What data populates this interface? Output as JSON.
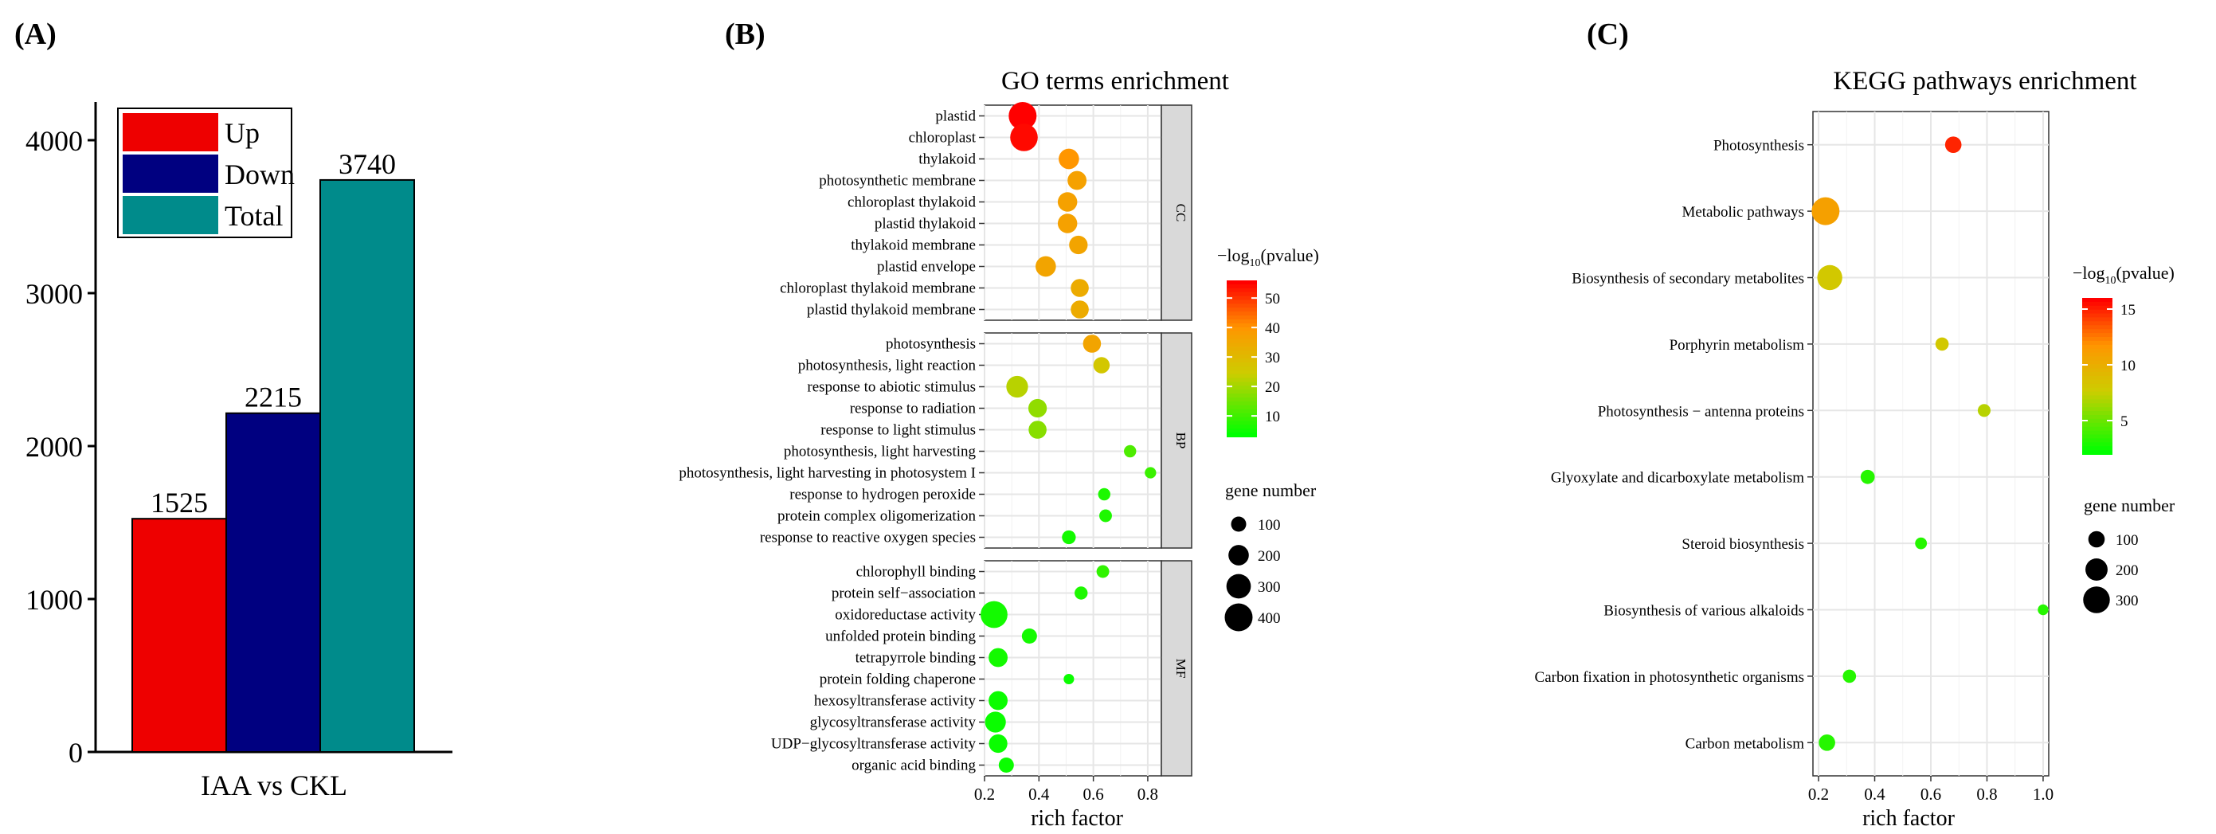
{
  "panel_labels": {
    "a": "(A)",
    "b": "(B)",
    "c": "(C)"
  },
  "legend_scale": {
    "cap_gene_a": "gene number",
    "cap_gene_b": "gene number"
  },
  "chart_data": [
    {
      "type": "bar",
      "panel": "A",
      "title": "",
      "xlabel": "IAA vs CKL",
      "ylabel": "",
      "ylim": [
        0,
        4250
      ],
      "yticks": [
        0,
        1000,
        2000,
        3000,
        4000
      ],
      "categories": [
        "IAA vs CKL"
      ],
      "series": [
        {
          "name": "Up",
          "values": [
            1525
          ],
          "color": "#ee0000"
        },
        {
          "name": "Down",
          "values": [
            2215
          ],
          "color": "#000080"
        },
        {
          "name": "Total",
          "values": [
            3740
          ],
          "color": "#008b8b"
        }
      ],
      "legend": [
        "Up",
        "Down",
        "Total"
      ],
      "legend_position": "top-left"
    },
    {
      "type": "scatter",
      "panel": "B",
      "title": "GO terms enrichment",
      "xlabel": "rich factor",
      "xlim": [
        0.2,
        0.85
      ],
      "xticks": [
        0.2,
        0.4,
        0.6,
        0.8
      ],
      "color_legend": {
        "title": "−log10(pvalue)",
        "range": [
          3,
          56
        ],
        "ticks": [
          10,
          20,
          30,
          40,
          50
        ]
      },
      "size_legend": {
        "title": "gene number",
        "values": [
          100,
          200,
          300,
          400
        ]
      },
      "facets": [
        {
          "name": "CC",
          "points": [
            {
              "term": "plastid",
              "x": 0.34,
              "genes": 400,
              "p": 56
            },
            {
              "term": "chloroplast",
              "x": 0.345,
              "genes": 390,
              "p": 55
            },
            {
              "term": "thylakoid",
              "x": 0.51,
              "genes": 200,
              "p": 40
            },
            {
              "term": "photosynthetic membrane",
              "x": 0.54,
              "genes": 170,
              "p": 37
            },
            {
              "term": "chloroplast thylakoid",
              "x": 0.505,
              "genes": 180,
              "p": 37
            },
            {
              "term": "plastid thylakoid",
              "x": 0.505,
              "genes": 180,
              "p": 37
            },
            {
              "term": "thylakoid membrane",
              "x": 0.545,
              "genes": 160,
              "p": 36
            },
            {
              "term": "plastid envelope",
              "x": 0.425,
              "genes": 200,
              "p": 36
            },
            {
              "term": "chloroplast thylakoid membrane",
              "x": 0.55,
              "genes": 150,
              "p": 34
            },
            {
              "term": "plastid thylakoid membrane",
              "x": 0.55,
              "genes": 150,
              "p": 34
            }
          ]
        },
        {
          "name": "BP",
          "points": [
            {
              "term": "photosynthesis",
              "x": 0.595,
              "genes": 150,
              "p": 36
            },
            {
              "term": "photosynthesis, light reaction",
              "x": 0.63,
              "genes": 120,
              "p": 26
            },
            {
              "term": "response to abiotic stimulus",
              "x": 0.32,
              "genes": 230,
              "p": 22
            },
            {
              "term": "response to radiation",
              "x": 0.395,
              "genes": 160,
              "p": 18
            },
            {
              "term": "response to light stimulus",
              "x": 0.395,
              "genes": 150,
              "p": 17
            },
            {
              "term": "photosynthesis, light harvesting",
              "x": 0.735,
              "genes": 60,
              "p": 11
            },
            {
              "term": "photosynthesis, light harvesting in photosystem I",
              "x": 0.81,
              "genes": 50,
              "p": 9
            },
            {
              "term": "response to hydrogen peroxide",
              "x": 0.64,
              "genes": 60,
              "p": 6
            },
            {
              "term": "protein complex oligomerization",
              "x": 0.645,
              "genes": 65,
              "p": 6
            },
            {
              "term": "response to reactive oxygen species",
              "x": 0.51,
              "genes": 80,
              "p": 5
            }
          ]
        },
        {
          "name": "MF",
          "points": [
            {
              "term": "chlorophyll binding",
              "x": 0.635,
              "genes": 65,
              "p": 8
            },
            {
              "term": "protein self−association",
              "x": 0.555,
              "genes": 70,
              "p": 6
            },
            {
              "term": "oxidoreductase activity",
              "x": 0.235,
              "genes": 370,
              "p": 5
            },
            {
              "term": "unfolded protein binding",
              "x": 0.365,
              "genes": 100,
              "p": 5
            },
            {
              "term": "tetrapyrrole binding",
              "x": 0.25,
              "genes": 170,
              "p": 5
            },
            {
              "term": "protein folding chaperone",
              "x": 0.51,
              "genes": 40,
              "p": 4
            },
            {
              "term": "hexosyltransferase activity",
              "x": 0.25,
              "genes": 170,
              "p": 4
            },
            {
              "term": "glycosyltransferase activity",
              "x": 0.24,
              "genes": 210,
              "p": 4
            },
            {
              "term": "UDP−glycosyltransferase activity",
              "x": 0.25,
              "genes": 160,
              "p": 4
            },
            {
              "term": "organic acid binding",
              "x": 0.28,
              "genes": 100,
              "p": 4
            }
          ]
        }
      ]
    },
    {
      "type": "scatter",
      "panel": "C",
      "title": "KEGG pathways enrichment",
      "xlabel": "rich factor",
      "xlim": [
        0.18,
        1.02
      ],
      "xticks": [
        0.2,
        0.4,
        0.6,
        0.8,
        1.0
      ],
      "xtick_labels": [
        "0.2",
        "0.4",
        "0.6",
        "0.8",
        "1.0"
      ],
      "color_legend": {
        "title": "−log10(pvalue)",
        "range": [
          2,
          16
        ],
        "ticks": [
          5,
          10,
          15
        ]
      },
      "size_legend": {
        "title": "gene number",
        "values": [
          100,
          200,
          300
        ]
      },
      "points": [
        {
          "term": "Photosynthesis",
          "x": 0.68,
          "genes": 100,
          "p": 15
        },
        {
          "term": "Metabolic pathways",
          "x": 0.225,
          "genes": 330,
          "p": 11
        },
        {
          "term": "Biosynthesis of secondary metabolites",
          "x": 0.24,
          "genes": 260,
          "p": 8
        },
        {
          "term": "Porphyrin metabolism",
          "x": 0.64,
          "genes": 60,
          "p": 8
        },
        {
          "term": "Photosynthesis − antenna proteins",
          "x": 0.79,
          "genes": 55,
          "p": 7
        },
        {
          "term": "Glyoxylate and dicarboxylate metabolism",
          "x": 0.375,
          "genes": 70,
          "p": 3
        },
        {
          "term": "Steroid biosynthesis",
          "x": 0.565,
          "genes": 45,
          "p": 3
        },
        {
          "term": "Biosynthesis of various alkaloids",
          "x": 1.0,
          "genes": 35,
          "p": 3
        },
        {
          "term": "Carbon fixation in photosynthetic organisms",
          "x": 0.31,
          "genes": 60,
          "p": 3
        },
        {
          "term": "Carbon metabolism",
          "x": 0.23,
          "genes": 100,
          "p": 3
        }
      ]
    }
  ]
}
